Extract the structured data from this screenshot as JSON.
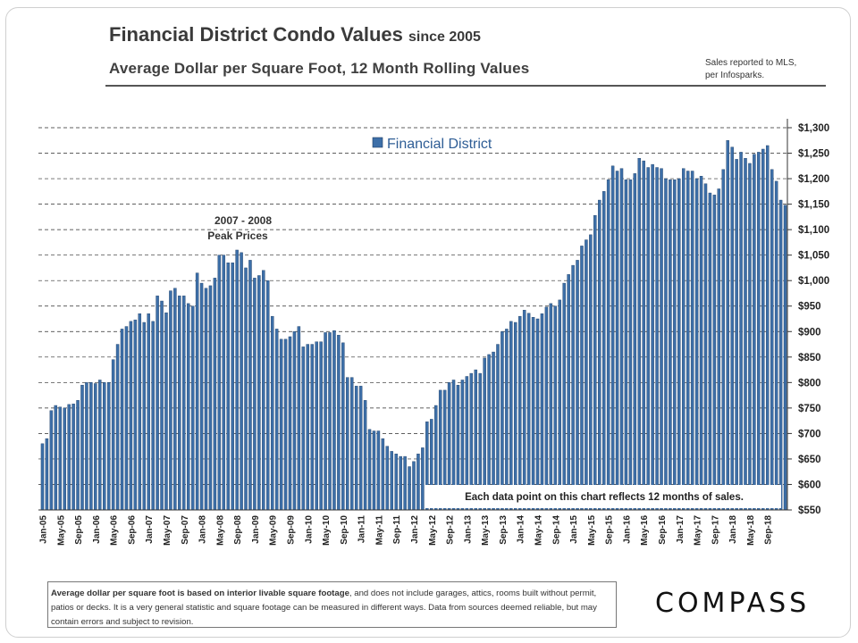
{
  "page": {
    "title_main": "Financial District Condo Values",
    "title_suffix": "since 2005",
    "subtitle": "Average Dollar  per Square  Foot, 12 Month  Rolling Values",
    "source_line1": "Sales reported  to MLS,",
    "source_line2": "per Infosparks.",
    "footnote_bold": "Average dollar per square foot is based on interior livable square footage",
    "footnote_rest": ", and does not include garages, attics, rooms built without permit, patios or decks. It is a very general statistic and square footage can be measured in different ways. Data from sources deemed reliable, but may contain errors and subject to revision.",
    "logo_text": "COMPASS"
  },
  "chart_data": {
    "type": "bar",
    "title": "Financial District Condo Values since 2005",
    "subtitle": "Average Dollar per Square Foot, 12 Month Rolling Values",
    "series_name": "Financial District",
    "bar_color": "#3d6fa8",
    "bar_edge_color": "#1f3f66",
    "ylim": [
      550,
      1300
    ],
    "y_ticks": [
      "$550",
      "$600",
      "$650",
      "$700",
      "$750",
      "$800",
      "$850",
      "$900",
      "$950",
      "$1,000",
      "$1,050",
      "$1,100",
      "$1,150",
      "$1,200",
      "$1,250",
      "$1,300"
    ],
    "y_tick_values": [
      550,
      600,
      650,
      700,
      750,
      800,
      850,
      900,
      950,
      1000,
      1050,
      1100,
      1150,
      1200,
      1250,
      1300
    ],
    "x_tick_labels": [
      "Jan-05",
      "May-05",
      "Sep-05",
      "Jan-06",
      "May-06",
      "Sep-06",
      "Jan-07",
      "May-07",
      "Sep-07",
      "Jan-08",
      "May-08",
      "Sep-08",
      "Jan-09",
      "May-09",
      "Sep-09",
      "Jan-10",
      "May-10",
      "Sep-10",
      "Jan-11",
      "May-11",
      "Sep-11",
      "Jan-12",
      "May-12",
      "Sep-12",
      "Jan-13",
      "May-13",
      "Sep-13",
      "Jan-14",
      "May-14",
      "Sep-14",
      "Jan-15",
      "May-15",
      "Sep-15",
      "Jan-16",
      "May-16",
      "Sep-16",
      "Jan-17",
      "May-17",
      "Sep-17",
      "Jan-18",
      "May-18",
      "Sep-18"
    ],
    "annotation_peak_line1": "2007  - 2008",
    "annotation_peak_line2": "Peak Prices",
    "annotation_note": "Each data point on this chart reflects 12 months of sales.",
    "values": [
      680,
      690,
      745,
      755,
      752,
      750,
      757,
      758,
      765,
      795,
      800,
      800,
      798,
      805,
      800,
      800,
      845,
      875,
      905,
      910,
      920,
      923,
      935,
      918,
      935,
      920,
      970,
      960,
      937,
      980,
      985,
      970,
      970,
      955,
      950,
      1015,
      995,
      985,
      990,
      1005,
      1050,
      1050,
      1035,
      1035,
      1060,
      1055,
      1025,
      1040,
      1005,
      1010,
      1020,
      1000,
      930,
      905,
      885,
      885,
      890,
      900,
      910,
      870,
      875,
      875,
      880,
      880,
      898,
      898,
      902,
      893,
      878,
      810,
      810,
      793,
      793,
      765,
      708,
      705,
      705,
      690,
      675,
      665,
      660,
      655,
      655,
      635,
      645,
      660,
      672,
      723,
      728,
      755,
      785,
      785,
      800,
      805,
      795,
      805,
      812,
      818,
      825,
      818,
      848,
      855,
      860,
      875,
      900,
      905,
      920,
      918,
      930,
      942,
      936,
      928,
      925,
      935,
      948,
      955,
      950,
      962,
      995,
      1012,
      1030,
      1040,
      1068,
      1080,
      1090,
      1128,
      1158,
      1175,
      1198,
      1225,
      1215,
      1220,
      1198,
      1198,
      1210,
      1240,
      1235,
      1222,
      1228,
      1222,
      1220,
      1200,
      1198,
      1198,
      1200,
      1220,
      1215,
      1215,
      1200,
      1205,
      1190,
      1172,
      1168,
      1180,
      1218,
      1275,
      1262,
      1238,
      1252,
      1240,
      1230,
      1248,
      1252,
      1258,
      1265,
      1218,
      1195,
      1158,
      1148
    ]
  }
}
